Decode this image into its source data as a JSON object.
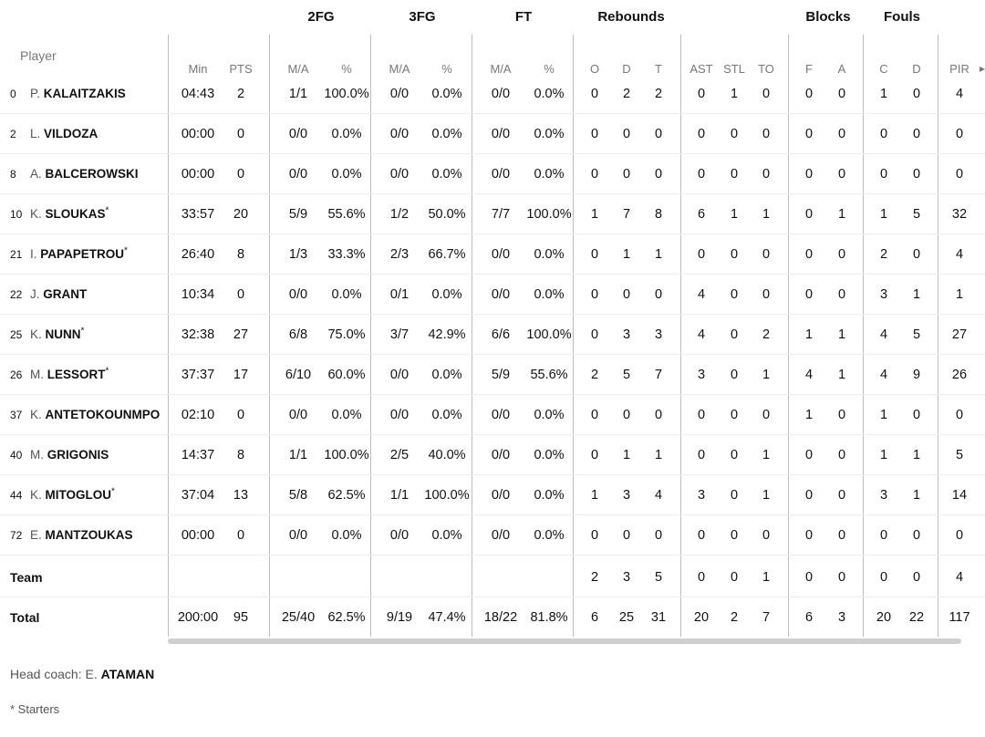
{
  "groups": [
    {
      "label": "2FG",
      "cx": 352
    },
    {
      "label": "3FG",
      "cx": 463
    },
    {
      "label": "FT",
      "cx": 574
    },
    {
      "label": "Rebounds",
      "cx": 692
    },
    {
      "label": "Blocks",
      "cx": 908
    },
    {
      "label": "Fouls",
      "cx": 989
    }
  ],
  "player_header": "Player",
  "columns": [
    {
      "key": "min",
      "label": "Min"
    },
    {
      "key": "pts",
      "label": "PTS"
    },
    {
      "key": "fg2",
      "label": "M/A"
    },
    {
      "key": "fg2p",
      "label": "%"
    },
    {
      "key": "fg3",
      "label": "M/A"
    },
    {
      "key": "fg3p",
      "label": "%"
    },
    {
      "key": "ft",
      "label": "M/A"
    },
    {
      "key": "ftp",
      "label": "%"
    },
    {
      "key": "ro",
      "label": "O"
    },
    {
      "key": "rd",
      "label": "D"
    },
    {
      "key": "rt",
      "label": "T"
    },
    {
      "key": "ast",
      "label": "AST"
    },
    {
      "key": "stl",
      "label": "STL"
    },
    {
      "key": "to",
      "label": "TO"
    },
    {
      "key": "bf",
      "label": "F"
    },
    {
      "key": "ba",
      "label": "A"
    },
    {
      "key": "fc",
      "label": "C"
    },
    {
      "key": "fd",
      "label": "D"
    },
    {
      "key": "pir",
      "label": "PIR"
    }
  ],
  "players": [
    {
      "num": "0",
      "init": "P.",
      "last": "KALAITZAKIS",
      "starter": false,
      "v": [
        "04:43",
        "2",
        "1/1",
        "100.0%",
        "0/0",
        "0.0%",
        "0/0",
        "0.0%",
        "0",
        "2",
        "2",
        "0",
        "1",
        "0",
        "0",
        "0",
        "1",
        "0",
        "4"
      ]
    },
    {
      "num": "2",
      "init": "L.",
      "last": "VILDOZA",
      "starter": false,
      "v": [
        "00:00",
        "0",
        "0/0",
        "0.0%",
        "0/0",
        "0.0%",
        "0/0",
        "0.0%",
        "0",
        "0",
        "0",
        "0",
        "0",
        "0",
        "0",
        "0",
        "0",
        "0",
        "0"
      ]
    },
    {
      "num": "8",
      "init": "A.",
      "last": "BALCEROWSKI",
      "starter": false,
      "v": [
        "00:00",
        "0",
        "0/0",
        "0.0%",
        "0/0",
        "0.0%",
        "0/0",
        "0.0%",
        "0",
        "0",
        "0",
        "0",
        "0",
        "0",
        "0",
        "0",
        "0",
        "0",
        "0"
      ]
    },
    {
      "num": "10",
      "init": "K.",
      "last": "SLOUKAS",
      "starter": true,
      "v": [
        "33:57",
        "20",
        "5/9",
        "55.6%",
        "1/2",
        "50.0%",
        "7/7",
        "100.0%",
        "1",
        "7",
        "8",
        "6",
        "1",
        "1",
        "0",
        "1",
        "1",
        "5",
        "32"
      ]
    },
    {
      "num": "21",
      "init": "I.",
      "last": "PAPAPETROU",
      "starter": true,
      "v": [
        "26:40",
        "8",
        "1/3",
        "33.3%",
        "2/3",
        "66.7%",
        "0/0",
        "0.0%",
        "0",
        "1",
        "1",
        "0",
        "0",
        "0",
        "0",
        "0",
        "2",
        "0",
        "4"
      ]
    },
    {
      "num": "22",
      "init": "J.",
      "last": "GRANT",
      "starter": false,
      "v": [
        "10:34",
        "0",
        "0/0",
        "0.0%",
        "0/1",
        "0.0%",
        "0/0",
        "0.0%",
        "0",
        "0",
        "0",
        "4",
        "0",
        "0",
        "0",
        "0",
        "3",
        "1",
        "1"
      ]
    },
    {
      "num": "25",
      "init": "K.",
      "last": "NUNN",
      "starter": true,
      "v": [
        "32:38",
        "27",
        "6/8",
        "75.0%",
        "3/7",
        "42.9%",
        "6/6",
        "100.0%",
        "0",
        "3",
        "3",
        "4",
        "0",
        "2",
        "1",
        "1",
        "4",
        "5",
        "27"
      ]
    },
    {
      "num": "26",
      "init": "M.",
      "last": "LESSORT",
      "starter": true,
      "v": [
        "37:37",
        "17",
        "6/10",
        "60.0%",
        "0/0",
        "0.0%",
        "5/9",
        "55.6%",
        "2",
        "5",
        "7",
        "3",
        "0",
        "1",
        "4",
        "1",
        "4",
        "9",
        "26"
      ]
    },
    {
      "num": "37",
      "init": "K.",
      "last": "ANTETOKOUNMPO",
      "starter": false,
      "v": [
        "02:10",
        "0",
        "0/0",
        "0.0%",
        "0/0",
        "0.0%",
        "0/0",
        "0.0%",
        "0",
        "0",
        "0",
        "0",
        "0",
        "0",
        "1",
        "0",
        "1",
        "0",
        "0"
      ]
    },
    {
      "num": "40",
      "init": "M.",
      "last": "GRIGONIS",
      "starter": false,
      "v": [
        "14:37",
        "8",
        "1/1",
        "100.0%",
        "2/5",
        "40.0%",
        "0/0",
        "0.0%",
        "0",
        "1",
        "1",
        "0",
        "0",
        "1",
        "0",
        "0",
        "1",
        "1",
        "5"
      ]
    },
    {
      "num": "44",
      "init": "K.",
      "last": "MITOGLOU",
      "starter": true,
      "v": [
        "37:04",
        "13",
        "5/8",
        "62.5%",
        "1/1",
        "100.0%",
        "0/0",
        "0.0%",
        "1",
        "3",
        "4",
        "3",
        "0",
        "1",
        "0",
        "0",
        "3",
        "1",
        "14"
      ]
    },
    {
      "num": "72",
      "init": "E.",
      "last": "MANTZOUKAS",
      "starter": false,
      "v": [
        "00:00",
        "0",
        "0/0",
        "0.0%",
        "0/0",
        "0.0%",
        "0/0",
        "0.0%",
        "0",
        "0",
        "0",
        "0",
        "0",
        "0",
        "0",
        "0",
        "0",
        "0",
        "0"
      ]
    }
  ],
  "team": {
    "label": "Team",
    "v": [
      "",
      "",
      "",
      "",
      "",
      "",
      "",
      "",
      "2",
      "3",
      "5",
      "0",
      "0",
      "1",
      "0",
      "0",
      "0",
      "0",
      "4"
    ]
  },
  "total": {
    "label": "Total",
    "v": [
      "200:00",
      "95",
      "25/40",
      "62.5%",
      "9/19",
      "47.4%",
      "18/22",
      "81.8%",
      "6",
      "25",
      "31",
      "20",
      "2",
      "7",
      "6",
      "3",
      "20",
      "22",
      "117"
    ]
  },
  "coach": {
    "label": "Head coach: E.",
    "name": "ATAMAN"
  },
  "starters_note": "* Starters",
  "starter_mark": "*"
}
